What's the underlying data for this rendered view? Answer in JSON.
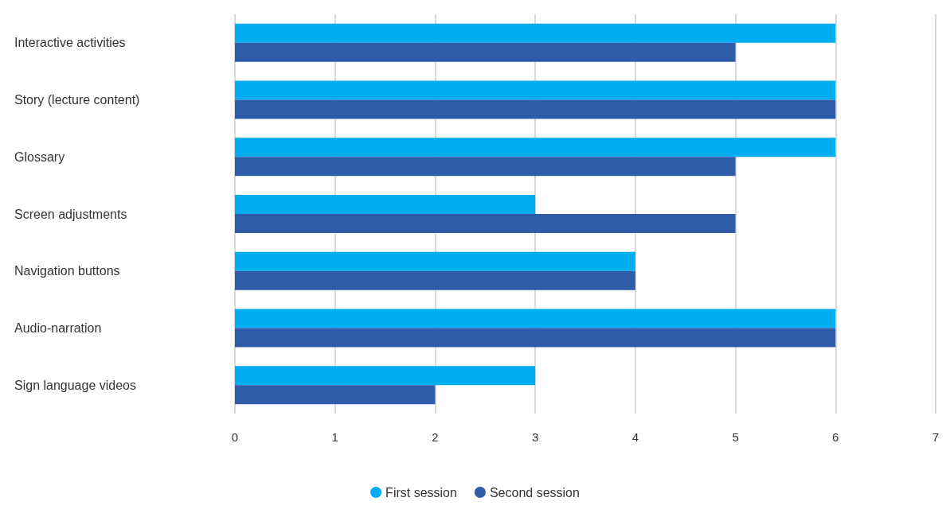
{
  "chart_data": {
    "type": "bar",
    "orientation": "horizontal",
    "categories": [
      "Interactive activities",
      "Story (lecture content)",
      "Glossary",
      "Screen adjustments",
      "Navigation buttons",
      "Audio-narration",
      "Sign language videos"
    ],
    "series": [
      {
        "name": "First session",
        "color": "#00adee",
        "values": [
          6,
          6,
          6,
          3,
          4,
          6,
          3
        ]
      },
      {
        "name": "Second session",
        "color": "#2f5ca9",
        "values": [
          5,
          6,
          5,
          5,
          4,
          6,
          2
        ]
      }
    ],
    "xlim": [
      0,
      7
    ],
    "xticks": [
      0,
      1,
      2,
      3,
      4,
      5,
      6,
      7
    ],
    "grid": "x",
    "legend": "bottom"
  }
}
